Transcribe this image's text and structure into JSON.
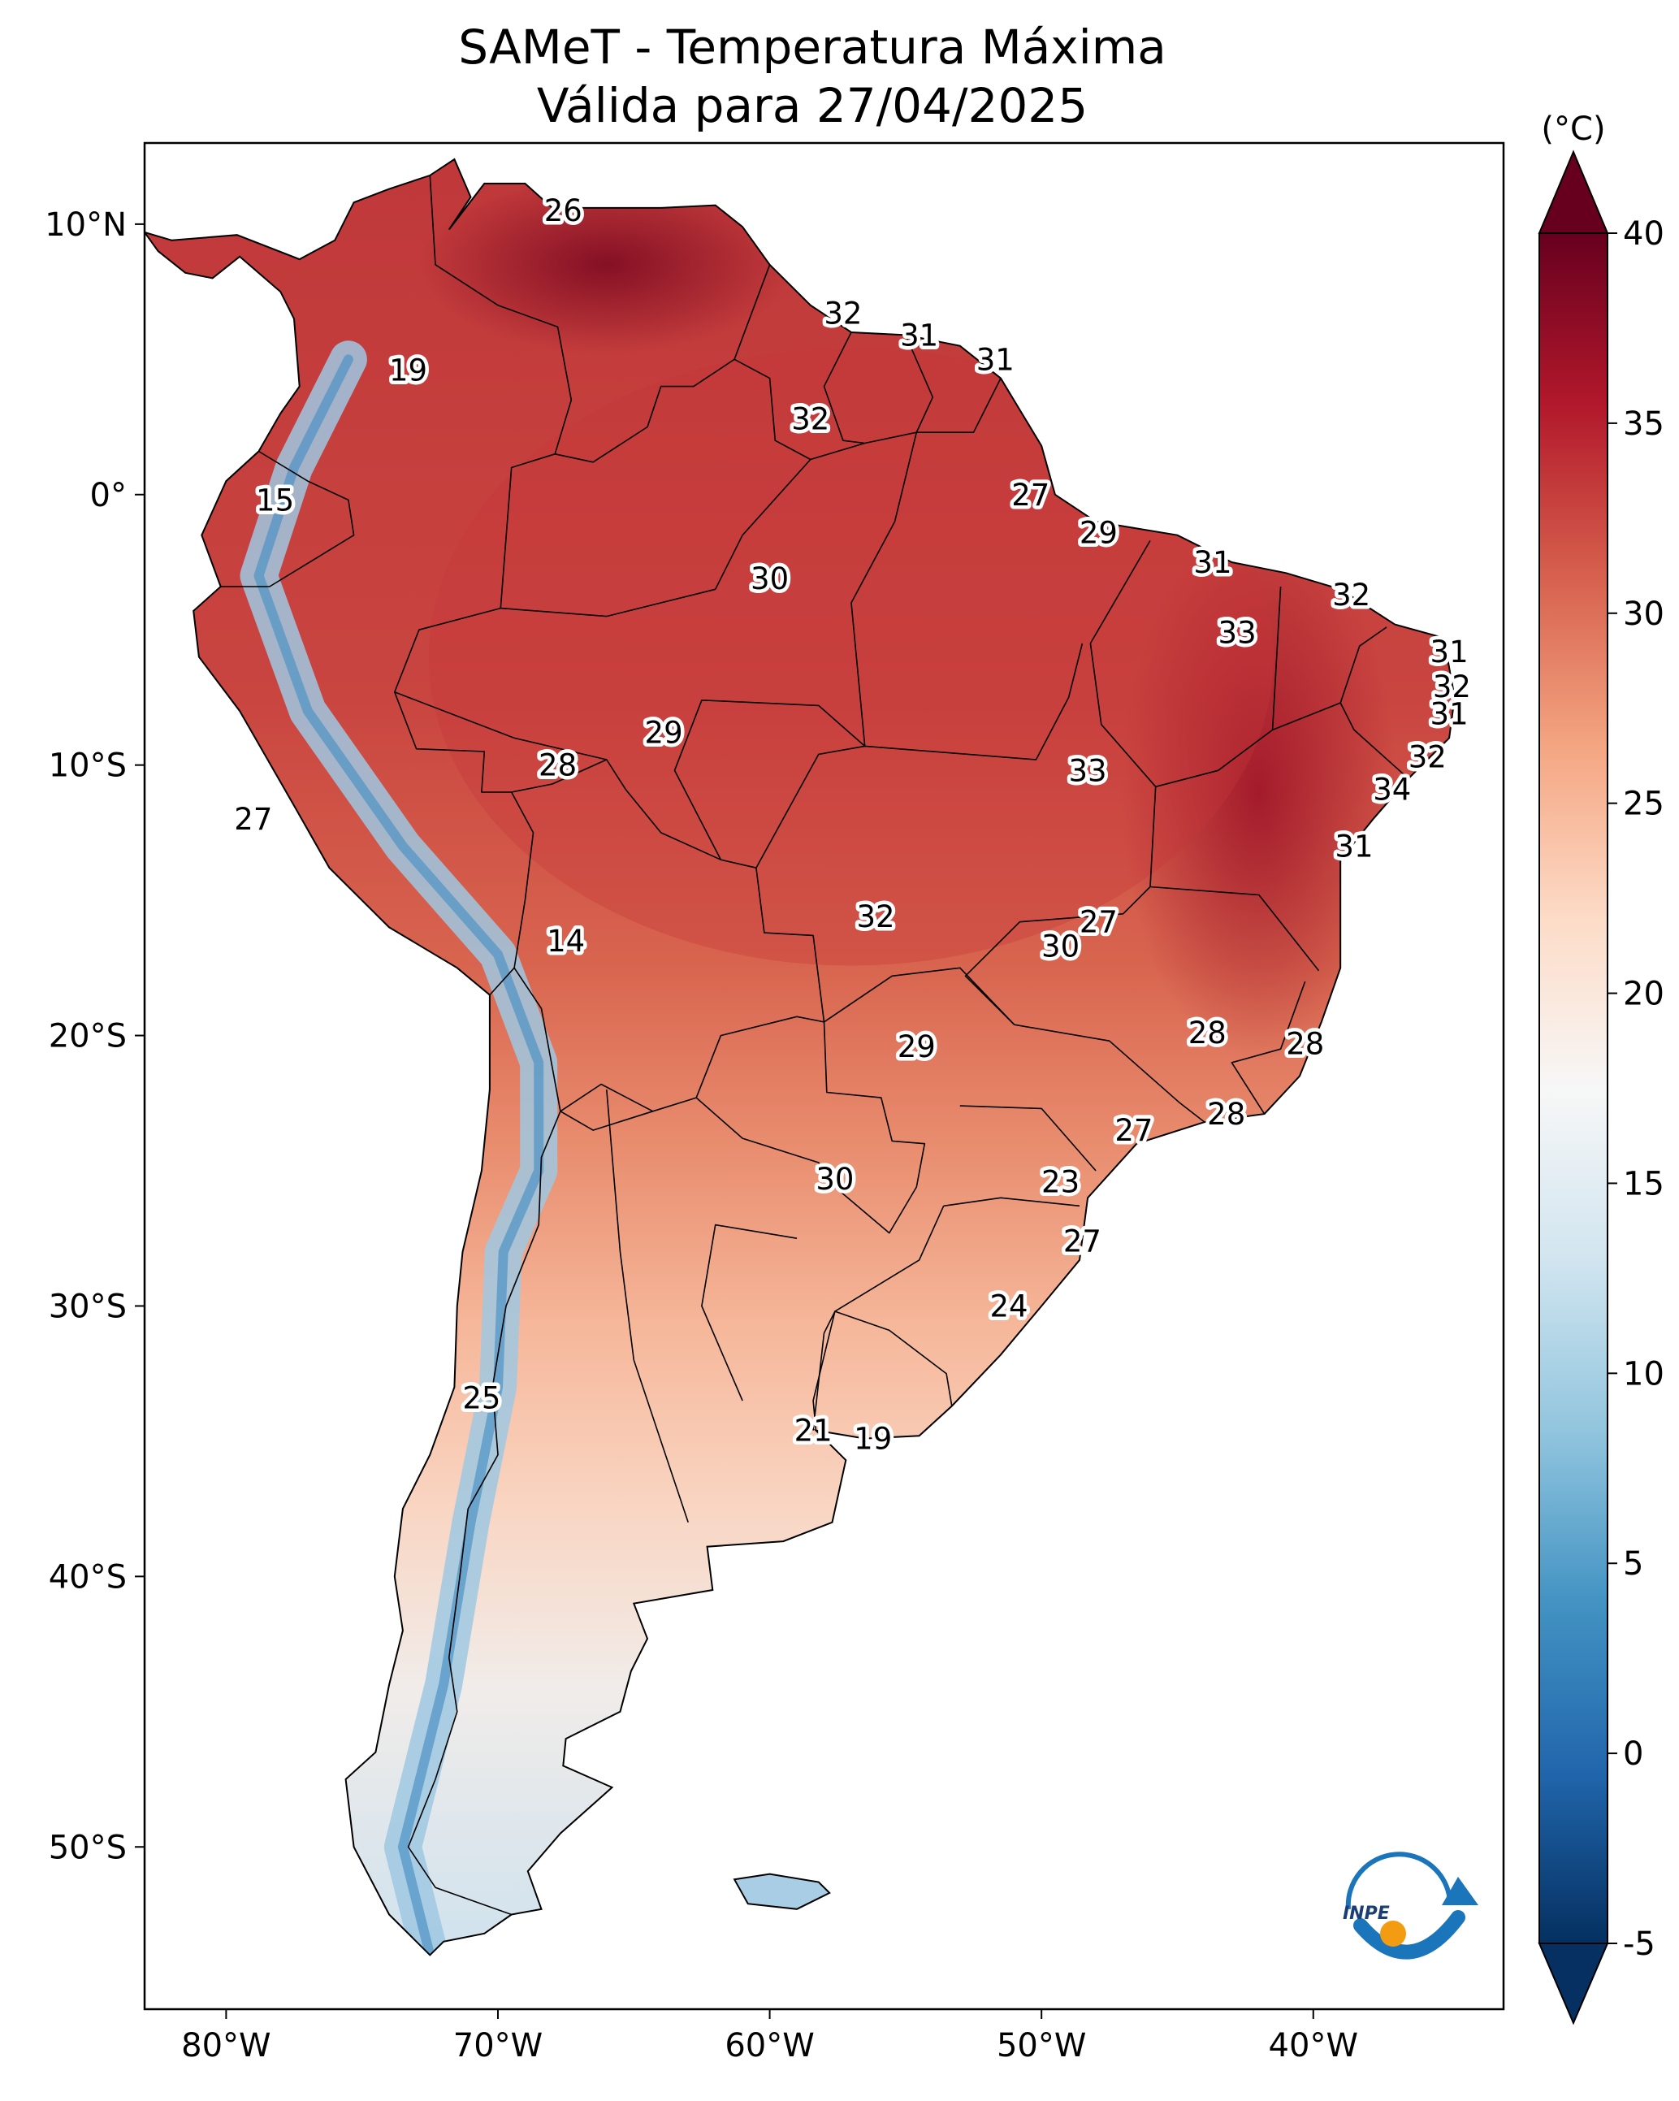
{
  "title_line1": "SAMeT - Temperatura Máxima",
  "title_line2": "Válida para 27/04/2025",
  "colorbar": {
    "unit": "(°C)",
    "min": -5,
    "max": 40,
    "ticks": [
      "40",
      "35",
      "30",
      "25",
      "20",
      "15",
      "10",
      "5",
      "0",
      "-5"
    ],
    "colormap": "RdBu_r"
  },
  "axes": {
    "lon_ticks": [
      "80°W",
      "70°W",
      "60°W",
      "50°W",
      "40°W"
    ],
    "lat_ticks": [
      "10°N",
      "0°",
      "10°S",
      "20°S",
      "30°S",
      "40°S",
      "50°S"
    ],
    "lon_range": [
      -83,
      -33
    ],
    "lat_range": [
      -56,
      13
    ]
  },
  "logo": {
    "text": "INPE",
    "name": "inpe-logo"
  },
  "city_labels": [
    {
      "t": "26",
      "lon": -67.6,
      "lat": 10.5
    },
    {
      "t": "32",
      "lon": -57.3,
      "lat": 6.7
    },
    {
      "t": "31",
      "lon": -54.5,
      "lat": 5.9
    },
    {
      "t": "31",
      "lon": -51.7,
      "lat": 5.0
    },
    {
      "t": "19",
      "lon": -73.3,
      "lat": 4.6
    },
    {
      "t": "32",
      "lon": -58.5,
      "lat": 2.8
    },
    {
      "t": "15",
      "lon": -78.2,
      "lat": -0.2
    },
    {
      "t": "27",
      "lon": -50.4,
      "lat": 0.0
    },
    {
      "t": "29",
      "lon": -47.9,
      "lat": -1.4
    },
    {
      "t": "31",
      "lon": -43.7,
      "lat": -2.5
    },
    {
      "t": "30",
      "lon": -60.0,
      "lat": -3.1
    },
    {
      "t": "32",
      "lon": -38.6,
      "lat": -3.7
    },
    {
      "t": "33",
      "lon": -42.8,
      "lat": -5.1
    },
    {
      "t": "31",
      "lon": -35.0,
      "lat": -5.8
    },
    {
      "t": "32",
      "lon": -34.9,
      "lat": -7.1
    },
    {
      "t": "31",
      "lon": -35.0,
      "lat": -8.1
    },
    {
      "t": "29",
      "lon": -63.9,
      "lat": -8.8
    },
    {
      "t": "32",
      "lon": -35.8,
      "lat": -9.7
    },
    {
      "t": "28",
      "lon": -67.8,
      "lat": -10.0
    },
    {
      "t": "33",
      "lon": -48.3,
      "lat": -10.2
    },
    {
      "t": "34",
      "lon": -37.1,
      "lat": -10.9
    },
    {
      "t": "27",
      "lon": -79.0,
      "lat": -12.0
    },
    {
      "t": "31",
      "lon": -38.5,
      "lat": -13.0
    },
    {
      "t": "32",
      "lon": -56.1,
      "lat": -15.6
    },
    {
      "t": "27",
      "lon": -47.9,
      "lat": -15.8
    },
    {
      "t": "30",
      "lon": -49.3,
      "lat": -16.7
    },
    {
      "t": "14",
      "lon": -67.5,
      "lat": -16.5
    },
    {
      "t": "28",
      "lon": -43.9,
      "lat": -19.9
    },
    {
      "t": "29",
      "lon": -54.6,
      "lat": -20.4
    },
    {
      "t": "28",
      "lon": -40.3,
      "lat": -20.3
    },
    {
      "t": "28",
      "lon": -43.2,
      "lat": -22.9
    },
    {
      "t": "27",
      "lon": -46.6,
      "lat": -23.5
    },
    {
      "t": "30",
      "lon": -57.6,
      "lat": -25.3
    },
    {
      "t": "23",
      "lon": -49.3,
      "lat": -25.4
    },
    {
      "t": "27",
      "lon": -48.5,
      "lat": -27.6
    },
    {
      "t": "24",
      "lon": -51.2,
      "lat": -30.0
    },
    {
      "t": "25",
      "lon": -70.6,
      "lat": -33.4
    },
    {
      "t": "21",
      "lon": -58.4,
      "lat": -34.6
    },
    {
      "t": "19",
      "lon": -56.2,
      "lat": -34.9
    }
  ]
}
